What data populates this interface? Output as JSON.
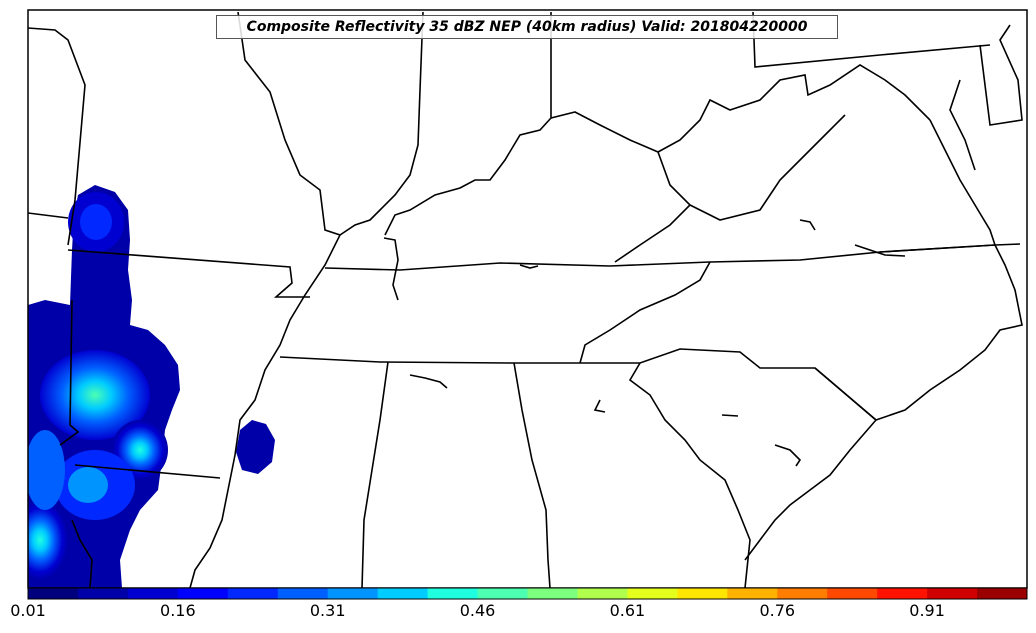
{
  "title": "Composite Reflectivity 35 dBZ NEP (40km radius) Valid: 201804220000",
  "colorbar": {
    "tick_labels": [
      "0.01",
      "0.16",
      "0.31",
      "0.46",
      "0.61",
      "0.76",
      "0.91"
    ],
    "colors": [
      "#00007f",
      "#0000a8",
      "#0000d0",
      "#0000ff",
      "#0028ff",
      "#0060ff",
      "#0094ff",
      "#00ccff",
      "#1fffe0",
      "#4dffb1",
      "#7dff7f",
      "#b1ff4d",
      "#e3ff1b",
      "#ffe600",
      "#ffb200",
      "#ff7d00",
      "#ff4800",
      "#ff1300",
      "#d00000",
      "#9b0000"
    ]
  }
}
